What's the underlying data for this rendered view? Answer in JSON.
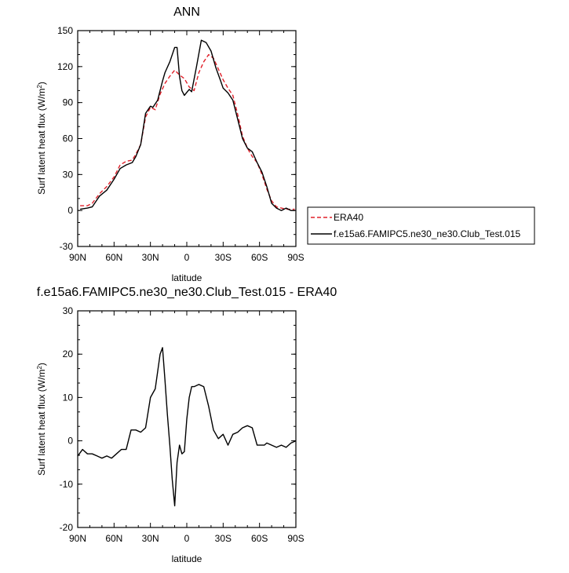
{
  "chart_data": [
    {
      "type": "line",
      "title": "ANN",
      "xlabel": "latitude",
      "ylabel": "Surf latent heat flux (W/m",
      "ylabel_sup": "2",
      "ylabel_close": ")",
      "xlim": [
        90,
        -90
      ],
      "ylim": [
        -30,
        150
      ],
      "xticks": [
        {
          "value": 90,
          "label": "90N"
        },
        {
          "value": 60,
          "label": "60N"
        },
        {
          "value": 30,
          "label": "30N"
        },
        {
          "value": 0,
          "label": "0"
        },
        {
          "value": -30,
          "label": "30S"
        },
        {
          "value": -60,
          "label": "60S"
        },
        {
          "value": -90,
          "label": "90S"
        }
      ],
      "yticks": [
        {
          "value": -30,
          "label": "-30"
        },
        {
          "value": 0,
          "label": "0"
        },
        {
          "value": 30,
          "label": "30"
        },
        {
          "value": 60,
          "label": "60"
        },
        {
          "value": 90,
          "label": "90"
        },
        {
          "value": 120,
          "label": "120"
        },
        {
          "value": 150,
          "label": "150"
        }
      ],
      "legend_placement": "right",
      "series": [
        {
          "name": "ERA40",
          "color": "#e0202a",
          "dash": "dashed",
          "x": [
            88,
            82,
            78,
            72,
            66,
            60,
            55,
            50,
            45,
            42,
            38,
            34,
            30,
            26,
            22,
            18,
            14,
            10,
            6,
            2,
            -2,
            -6,
            -10,
            -14,
            -18,
            -22,
            -26,
            -30,
            -34,
            -38,
            -42,
            -46,
            -50,
            -54,
            -58,
            -62,
            -66,
            -70,
            -74,
            -78,
            -82,
            -86,
            -89
          ],
          "y": [
            4,
            4,
            6,
            14,
            20,
            28,
            38,
            41,
            42,
            47,
            55,
            78,
            86,
            84,
            97,
            106,
            112,
            117,
            113,
            110,
            103,
            100,
            115,
            124,
            130,
            127,
            118,
            109,
            102,
            96,
            80,
            62,
            52,
            45,
            40,
            30,
            18,
            8,
            3,
            2,
            1,
            1,
            1
          ]
        },
        {
          "name": "f.e15a6.FAMIPC5.ne30_ne30.Club_Test.015",
          "color": "#000000",
          "dash": "solid",
          "x": [
            88,
            82,
            78,
            72,
            66,
            60,
            55,
            50,
            45,
            42,
            38,
            34,
            30,
            28,
            24,
            20,
            18,
            14,
            10,
            8,
            6,
            4,
            2,
            -2,
            -4,
            -8,
            -12,
            -16,
            -20,
            -24,
            -28,
            -30,
            -34,
            -38,
            -42,
            -46,
            -50,
            -54,
            -58,
            -62,
            -66,
            -70,
            -74,
            -78,
            -82,
            -86,
            -89
          ],
          "y": [
            1,
            2,
            3,
            12,
            17,
            26,
            35,
            38,
            40,
            45,
            55,
            81,
            87,
            86,
            92,
            108,
            115,
            124,
            136,
            136,
            112,
            100,
            96,
            101,
            99,
            120,
            142,
            140,
            133,
            119,
            108,
            102,
            98,
            92,
            76,
            60,
            52,
            49,
            40,
            32,
            20,
            6,
            2,
            0,
            2,
            0,
            0
          ]
        }
      ]
    },
    {
      "type": "line",
      "title": "f.e15a6.FAMIPC5.ne30_ne30.Club_Test.015 - ERA40",
      "xlabel": "latitude",
      "ylabel": "Surf latent heat flux (W/m",
      "ylabel_sup": "2",
      "ylabel_close": ")",
      "xlim": [
        90,
        -90
      ],
      "ylim": [
        -20,
        30
      ],
      "xticks": [
        {
          "value": 90,
          "label": "90N"
        },
        {
          "value": 60,
          "label": "60N"
        },
        {
          "value": 30,
          "label": "30N"
        },
        {
          "value": 0,
          "label": "0"
        },
        {
          "value": -30,
          "label": "30S"
        },
        {
          "value": -60,
          "label": "60S"
        },
        {
          "value": -90,
          "label": "90S"
        }
      ],
      "yticks": [
        {
          "value": -20,
          "label": "-20"
        },
        {
          "value": -10,
          "label": "-10"
        },
        {
          "value": 0,
          "label": "0"
        },
        {
          "value": 10,
          "label": "10"
        },
        {
          "value": 20,
          "label": "20"
        },
        {
          "value": 30,
          "label": "30"
        }
      ],
      "series": [
        {
          "color": "#000000",
          "x": [
            90,
            86,
            82,
            78,
            74,
            70,
            66,
            62,
            58,
            54,
            50,
            46,
            42,
            38,
            34,
            30,
            26,
            24,
            22,
            20,
            18,
            16,
            14,
            12,
            10,
            8,
            6,
            4,
            2,
            0,
            -2,
            -4,
            -6,
            -10,
            -14,
            -18,
            -22,
            -26,
            -30,
            -34,
            -38,
            -42,
            -46,
            -50,
            -54,
            -58,
            -62,
            -64,
            -66,
            -70,
            -74,
            -78,
            -82,
            -86,
            -90
          ],
          "y": [
            -3.5,
            -2,
            -3,
            -3,
            -3.5,
            -4,
            -3.5,
            -4,
            -3,
            -2,
            -2,
            2.5,
            2.5,
            2,
            3,
            10,
            12,
            16,
            20,
            21.5,
            14,
            6,
            -1,
            -9,
            -15,
            -5,
            -1,
            -3,
            -2.5,
            5,
            10,
            12.5,
            12.5,
            13,
            12.5,
            8,
            2.5,
            0.5,
            1.5,
            -1,
            1.5,
            2,
            3,
            3.5,
            3,
            -1,
            -1,
            -1,
            -0.5,
            -1,
            -1.5,
            -1,
            -1.5,
            -0.5,
            0
          ]
        }
      ]
    }
  ]
}
